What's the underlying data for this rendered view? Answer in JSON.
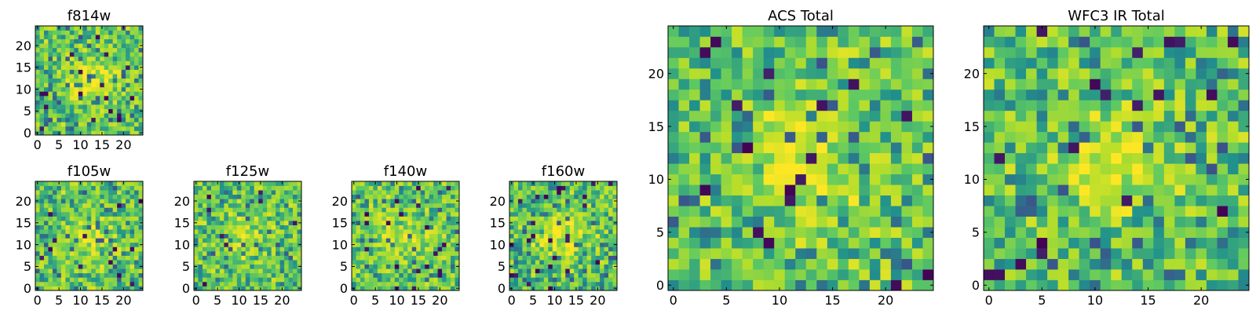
{
  "figure": {
    "colormap": [
      "#440154",
      "#3b528b",
      "#21918c",
      "#5ec962",
      "#b5de2b",
      "#fde725"
    ]
  },
  "chart_data": [
    {
      "id": "f814w",
      "type": "heatmap",
      "title": "f814w",
      "grid_size": 25,
      "xlim": [
        -0.5,
        24.5
      ],
      "ylim": [
        -0.5,
        24.5
      ],
      "xticks": [
        0,
        5,
        10,
        15,
        20
      ],
      "yticks": [
        0,
        5,
        10,
        15,
        20
      ],
      "xlabel": "",
      "ylabel": "",
      "seed": 8141,
      "center_bright": 0.35
    },
    {
      "id": "f105w",
      "type": "heatmap",
      "title": "f105w",
      "grid_size": 25,
      "xlim": [
        -0.5,
        24.5
      ],
      "ylim": [
        -0.5,
        24.5
      ],
      "xticks": [
        0,
        5,
        10,
        15,
        20
      ],
      "yticks": [
        0,
        5,
        10,
        15,
        20
      ],
      "xlabel": "",
      "ylabel": "",
      "seed": 1051,
      "center_bright": 0.2
    },
    {
      "id": "f125w",
      "type": "heatmap",
      "title": "f125w",
      "grid_size": 25,
      "xlim": [
        -0.5,
        24.5
      ],
      "ylim": [
        -0.5,
        24.5
      ],
      "xticks": [
        0,
        5,
        10,
        15,
        20
      ],
      "yticks": [
        0,
        5,
        10,
        15,
        20
      ],
      "xlabel": "",
      "ylabel": "",
      "seed": 1252,
      "center_bright": 0.2
    },
    {
      "id": "f140w",
      "type": "heatmap",
      "title": "f140w",
      "grid_size": 25,
      "xlim": [
        -0.5,
        24.5
      ],
      "ylim": [
        -0.5,
        24.5
      ],
      "xticks": [
        0,
        5,
        10,
        15,
        20
      ],
      "yticks": [
        0,
        5,
        10,
        15,
        20
      ],
      "xlabel": "",
      "ylabel": "",
      "seed": 1403,
      "center_bright": 0.2
    },
    {
      "id": "f160w",
      "type": "heatmap",
      "title": "f160w",
      "grid_size": 25,
      "xlim": [
        -0.5,
        24.5
      ],
      "ylim": [
        -0.5,
        24.5
      ],
      "xticks": [
        0,
        5,
        10,
        15,
        20
      ],
      "yticks": [
        0,
        5,
        10,
        15,
        20
      ],
      "xlabel": "",
      "ylabel": "",
      "seed": 1604,
      "center_bright": 0.3
    },
    {
      "id": "acs_total",
      "type": "heatmap",
      "title": "ACS Total",
      "grid_size": 25,
      "xlim": [
        -0.5,
        24.5
      ],
      "ylim": [
        -0.5,
        24.5
      ],
      "xticks": [
        0,
        5,
        10,
        15,
        20
      ],
      "yticks": [
        0,
        5,
        10,
        15,
        20
      ],
      "xlabel": "",
      "ylabel": "",
      "seed": 2201,
      "center_bright": 0.3
    },
    {
      "id": "wfc3_ir_total",
      "type": "heatmap",
      "title": "WFC3 IR Total",
      "grid_size": 25,
      "xlim": [
        -0.5,
        24.5
      ],
      "ylim": [
        -0.5,
        24.5
      ],
      "xticks": [
        0,
        5,
        10,
        15,
        20
      ],
      "yticks": [
        0,
        5,
        10,
        15,
        20
      ],
      "xlabel": "",
      "ylabel": "",
      "seed": 3302,
      "center_bright": 0.25
    }
  ]
}
